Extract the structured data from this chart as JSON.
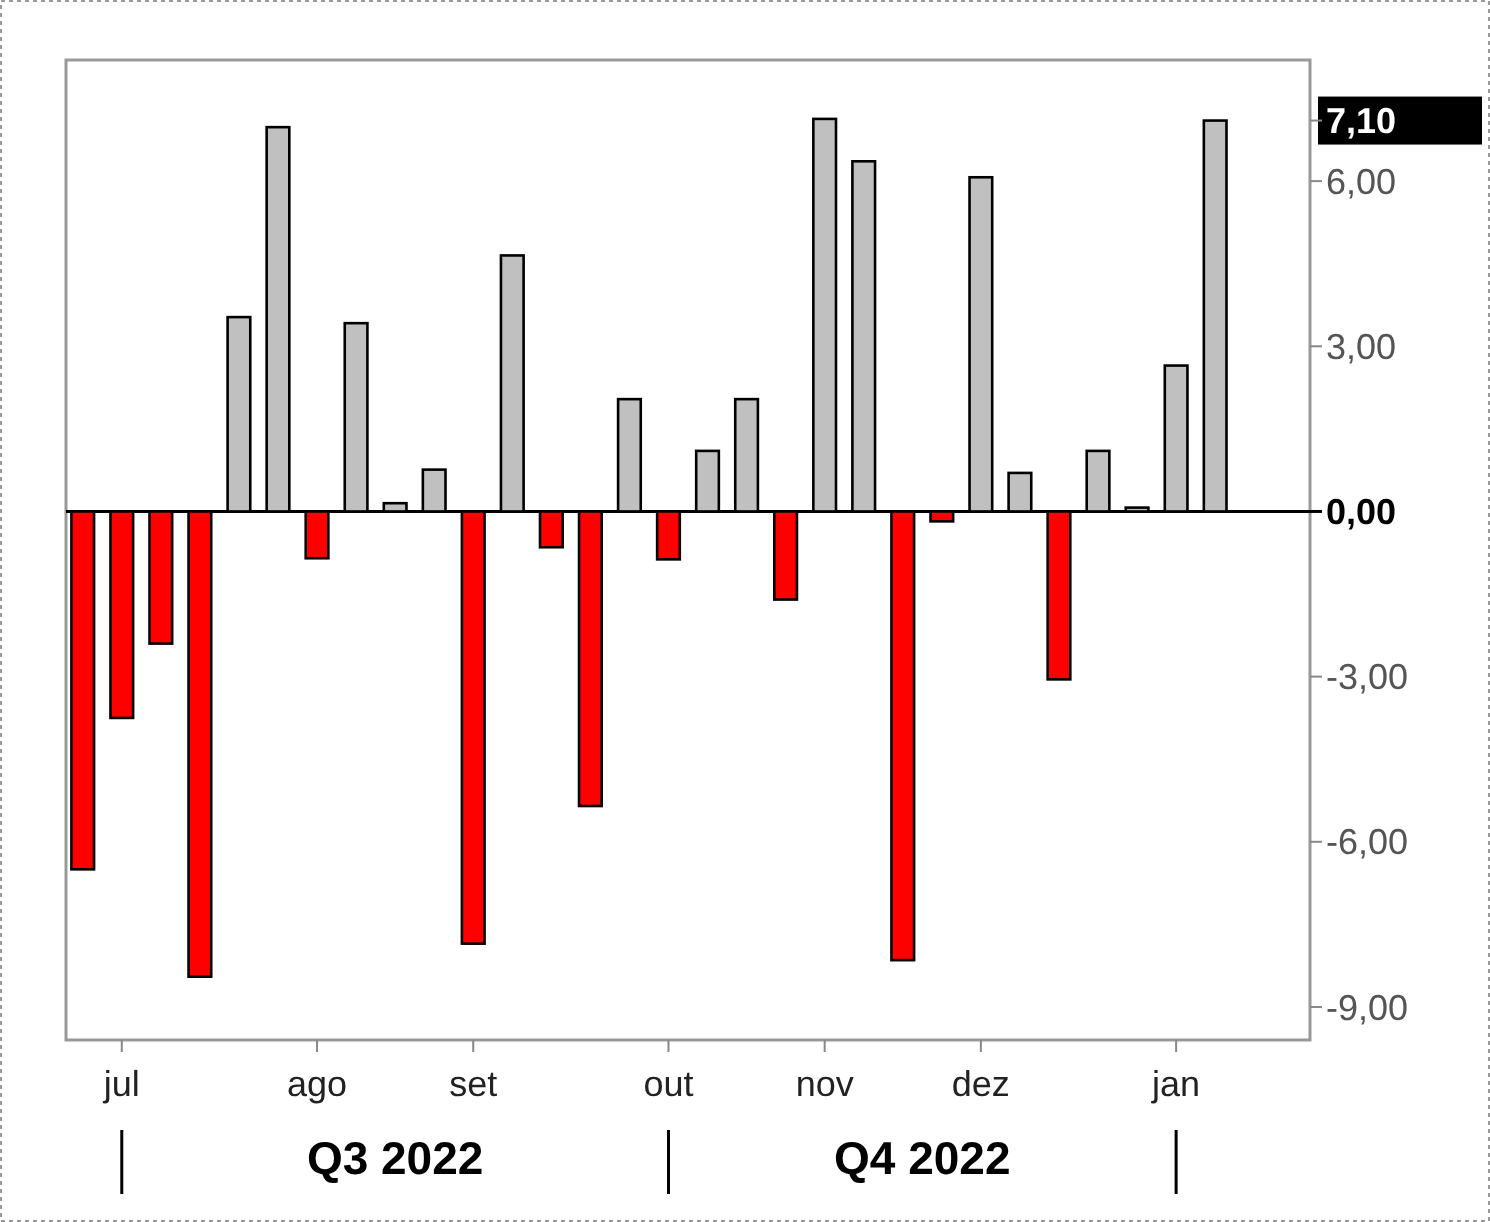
{
  "chart_data": {
    "type": "bar",
    "x": [
      "2022-06-24",
      "2022-07-01",
      "2022-07-08",
      "2022-07-15",
      "2022-07-22",
      "2022-07-29",
      "2022-08-05",
      "2022-08-12",
      "2022-08-19",
      "2022-08-26",
      "2022-09-02",
      "2022-09-09",
      "2022-09-16",
      "2022-09-23",
      "2022-09-30",
      "2022-10-07",
      "2022-10-14",
      "2022-10-21",
      "2022-10-28",
      "2022-11-04",
      "2022-11-11",
      "2022-11-18",
      "2022-11-25",
      "2022-12-02",
      "2022-12-09",
      "2022-12-16",
      "2022-12-23",
      "2022-12-30",
      "2023-01-06",
      "2023-01-13"
    ],
    "values": [
      -6.5,
      -3.75,
      -2.4,
      -8.45,
      3.53,
      6.98,
      -0.85,
      3.42,
      0.15,
      0.76,
      -7.85,
      4.65,
      -0.65,
      -5.35,
      2.04,
      -0.87,
      1.1,
      2.04,
      -1.6,
      7.13,
      6.36,
      -8.15,
      -0.18,
      6.07,
      0.7,
      -3.05,
      1.1,
      0.07,
      2.65,
      7.1
    ],
    "colors": [
      "#ff0000",
      "#ff0000",
      "#ff0000",
      "#ff0000",
      "#c0c0c0",
      "#c0c0c0",
      "#ff0000",
      "#c0c0c0",
      "#c0c0c0",
      "#c0c0c0",
      "#ff0000",
      "#c0c0c0",
      "#ff0000",
      "#ff0000",
      "#c0c0c0",
      "#ff0000",
      "#c0c0c0",
      "#c0c0c0",
      "#ff0000",
      "#c0c0c0",
      "#c0c0c0",
      "#ff0000",
      "#ff0000",
      "#c0c0c0",
      "#c0c0c0",
      "#ff0000",
      "#c0c0c0",
      "#c0c0c0",
      "#c0c0c0",
      "#c0c0c0"
    ],
    "xlim": [
      "2022-06-21",
      "2023-01-30"
    ],
    "xticks": [
      {
        "value": "2022-07-01",
        "label": "jul"
      },
      {
        "value": "2022-08-05",
        "label": "ago"
      },
      {
        "value": "2022-09-02",
        "label": "set"
      },
      {
        "value": "2022-10-07",
        "label": "out"
      },
      {
        "value": "2022-11-04",
        "label": "nov"
      },
      {
        "value": "2022-12-02",
        "label": "dez"
      },
      {
        "value": "2023-01-06",
        "label": "jan"
      }
    ],
    "ylim": [
      -9.6,
      8.2
    ],
    "yticks": [
      {
        "value": -9,
        "label": "-9,00"
      },
      {
        "value": -6,
        "label": "-6,00"
      },
      {
        "value": -3,
        "label": "-3,00"
      },
      {
        "value": 0,
        "label": "0,00"
      },
      {
        "value": 3,
        "label": "3,00"
      },
      {
        "value": 6,
        "label": "6,00"
      },
      {
        "value": 7.1,
        "label": "7,10"
      }
    ],
    "annotations": [
      "Q3 2022",
      "Q4 2022"
    ]
  }
}
